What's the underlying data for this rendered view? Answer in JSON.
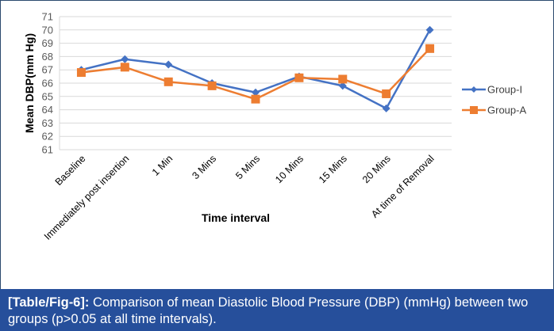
{
  "chart_data": {
    "type": "line",
    "title": "",
    "xlabel": "Time interval",
    "ylabel": "Mean DBP(mm Hg)",
    "ylim": [
      61,
      71
    ],
    "yticks": [
      61,
      62,
      63,
      64,
      65,
      66,
      67,
      68,
      69,
      70,
      71
    ],
    "grid": true,
    "legend_position": "right",
    "categories": [
      "Baseline",
      "Immediately post insertion",
      "1 Min",
      "3 Mins",
      "5 Mins",
      "10 Mins",
      "15 Mins",
      "20 Mins",
      "At time of Removal"
    ],
    "series": [
      {
        "name": "Group-I",
        "color": "#4472c4",
        "marker": "diamond",
        "values": [
          67.0,
          67.8,
          67.4,
          66.0,
          65.3,
          66.5,
          65.8,
          64.1,
          70.0
        ]
      },
      {
        "name": "Group-A",
        "color": "#ed7d31",
        "marker": "square",
        "values": [
          66.8,
          67.2,
          66.1,
          65.8,
          64.8,
          66.4,
          66.3,
          65.2,
          68.6
        ]
      }
    ]
  },
  "caption": {
    "label": "[Table/Fig-6]:",
    "text": " Comparison of mean Diastolic Blood Pressure (DBP) (mmHg) between two groups (p>0.05 at all time intervals)."
  }
}
